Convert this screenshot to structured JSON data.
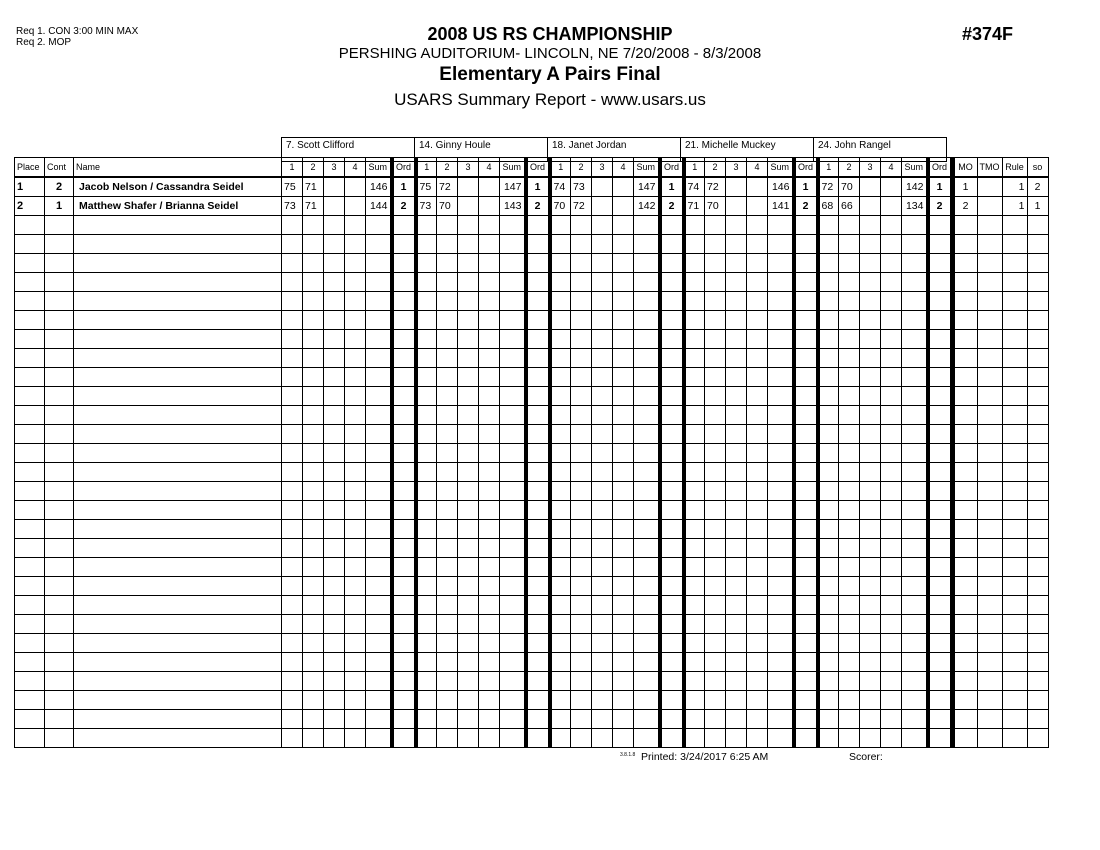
{
  "requirements": [
    "Req  1.  CON   3:00 MIN MAX",
    "Req  2.  MOP"
  ],
  "header": {
    "title": "2008 US RS CHAMPIONSHIP",
    "venue": "PERSHING AUDITORIUM- LINCOLN, NE  7/20/2008 - 8/3/2008",
    "event": "Elementary A Pairs Final",
    "report": "USARS Summary Report - www.usars.us",
    "event_number": "#374F"
  },
  "judges": [
    "7.  Scott Clifford",
    "14.  Ginny Houle",
    "18.  Janet Jordan",
    "21.  Michelle Muckey",
    "24.  John Rangel"
  ],
  "columns": {
    "place": "Place",
    "cont": "Cont",
    "name": "Name",
    "judge_cols": [
      "1",
      "2",
      "3",
      "4",
      "Sum",
      "Ord"
    ],
    "mo": "MO",
    "tmo": "TMO",
    "rule": "Rule",
    "so": "so"
  },
  "rows": [
    {
      "place": "1",
      "cont": "2",
      "name": "Jacob Nelson / Cassandra Seidel",
      "scores": [
        [
          "75",
          "71",
          "",
          "",
          "146",
          "1"
        ],
        [
          "75",
          "72",
          "",
          "",
          "147",
          "1"
        ],
        [
          "74",
          "73",
          "",
          "",
          "147",
          "1"
        ],
        [
          "74",
          "72",
          "",
          "",
          "146",
          "1"
        ],
        [
          "72",
          "70",
          "",
          "",
          "142",
          "1"
        ]
      ],
      "mo": "1",
      "tmo": "",
      "rule": "1",
      "so": "2"
    },
    {
      "place": "2",
      "cont": "1",
      "name": "Matthew Shafer / Brianna Seidel",
      "scores": [
        [
          "73",
          "71",
          "",
          "",
          "144",
          "2"
        ],
        [
          "73",
          "70",
          "",
          "",
          "143",
          "2"
        ],
        [
          "70",
          "72",
          "",
          "",
          "142",
          "2"
        ],
        [
          "71",
          "70",
          "",
          "",
          "141",
          "2"
        ],
        [
          "68",
          "66",
          "",
          "",
          "134",
          "2"
        ]
      ],
      "mo": "2",
      "tmo": "",
      "rule": "1",
      "so": "1"
    }
  ],
  "footer": {
    "version": "3.8.1.8",
    "printed": "Printed:  3/24/2017  6:25 AM",
    "scorer": "Scorer:"
  }
}
